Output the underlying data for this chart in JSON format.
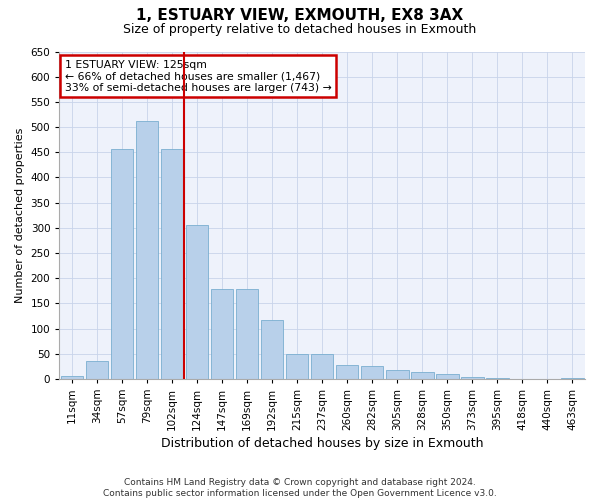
{
  "title": "1, ESTUARY VIEW, EXMOUTH, EX8 3AX",
  "subtitle": "Size of property relative to detached houses in Exmouth",
  "xlabel": "Distribution of detached houses by size in Exmouth",
  "ylabel": "Number of detached properties",
  "categories": [
    "11sqm",
    "34sqm",
    "57sqm",
    "79sqm",
    "102sqm",
    "124sqm",
    "147sqm",
    "169sqm",
    "192sqm",
    "215sqm",
    "237sqm",
    "260sqm",
    "282sqm",
    "305sqm",
    "328sqm",
    "350sqm",
    "373sqm",
    "395sqm",
    "418sqm",
    "440sqm",
    "463sqm"
  ],
  "values": [
    5,
    35,
    457,
    512,
    457,
    305,
    178,
    178,
    117,
    50,
    50,
    27,
    25,
    18,
    13,
    9,
    3,
    1,
    0,
    0,
    1
  ],
  "bar_color": "#b8d0ea",
  "bar_edge_color": "#7aaed0",
  "property_line_x": 5.0,
  "annotation_title": "1 ESTUARY VIEW: 125sqm",
  "annotation_line1": "← 66% of detached houses are smaller (1,467)",
  "annotation_line2": "33% of semi-detached houses are larger (743) →",
  "annotation_box_color": "#cc0000",
  "ylim": [
    0,
    650
  ],
  "yticks": [
    0,
    50,
    100,
    150,
    200,
    250,
    300,
    350,
    400,
    450,
    500,
    550,
    600,
    650
  ],
  "footer_line1": "Contains HM Land Registry data © Crown copyright and database right 2024.",
  "footer_line2": "Contains public sector information licensed under the Open Government Licence v3.0.",
  "bg_color": "#eef2fb",
  "grid_color": "#c8d4ea",
  "title_fontsize": 11,
  "subtitle_fontsize": 9,
  "xlabel_fontsize": 9,
  "ylabel_fontsize": 8,
  "tick_fontsize": 7.5,
  "footer_fontsize": 6.5,
  "ann_fontsize": 7.8
}
